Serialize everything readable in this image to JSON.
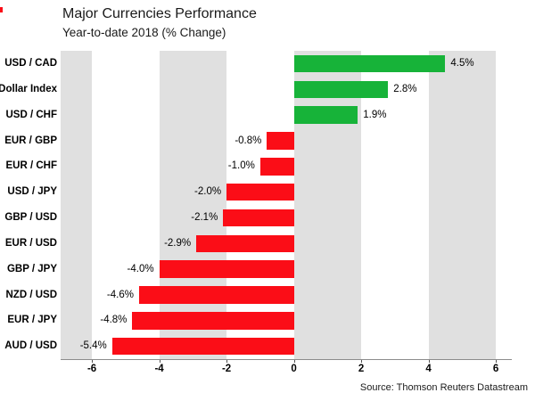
{
  "header": {
    "title": "Major Currencies Performance",
    "subtitle": "Year-to-date 2018 (% Change)"
  },
  "footer": {
    "source": "Source: Thomson Reuters Datastream"
  },
  "chart_data": {
    "type": "bar",
    "orientation": "horizontal",
    "title": "Major Currencies Performance",
    "subtitle": "Year-to-date 2018 (% Change)",
    "categories": [
      "USD / CAD",
      "Dollar Index",
      "USD / CHF",
      "EUR / GBP",
      "EUR / CHF",
      "USD / JPY",
      "GBP / USD",
      "EUR / USD",
      "GBP / JPY",
      "NZD / USD",
      "EUR / JPY",
      "AUD / USD"
    ],
    "values": [
      4.5,
      2.8,
      1.9,
      -0.8,
      -1.0,
      -2.0,
      -2.1,
      -2.9,
      -4.0,
      -4.6,
      -4.8,
      -5.4
    ],
    "value_labels": [
      "4.5%",
      "2.8%",
      "1.9%",
      "-0.8%",
      "-1.0%",
      "-2.0%",
      "-2.1%",
      "-2.9%",
      "-4.0%",
      "-4.6%",
      "-4.8%",
      "-5.4%"
    ],
    "xlabel": "",
    "ylabel": "",
    "x_ticks": [
      -6,
      -4,
      -2,
      0,
      2,
      4,
      6
    ],
    "xlim": [
      -6.93,
      6.45
    ],
    "shaded_bands": [
      [
        -6.93,
        -6
      ],
      [
        -4,
        -2
      ],
      [
        0,
        2
      ],
      [
        4,
        6
      ]
    ],
    "legend": "none",
    "grid": "alternating vertical shaded bands",
    "colors": {
      "positive_bar": "#17b339",
      "negative_bar": "#fb0d17",
      "shaded_band": "#e0e0e0",
      "axis": "#8c8c8c",
      "text": "#000000",
      "marker": "#fb0d17"
    }
  }
}
